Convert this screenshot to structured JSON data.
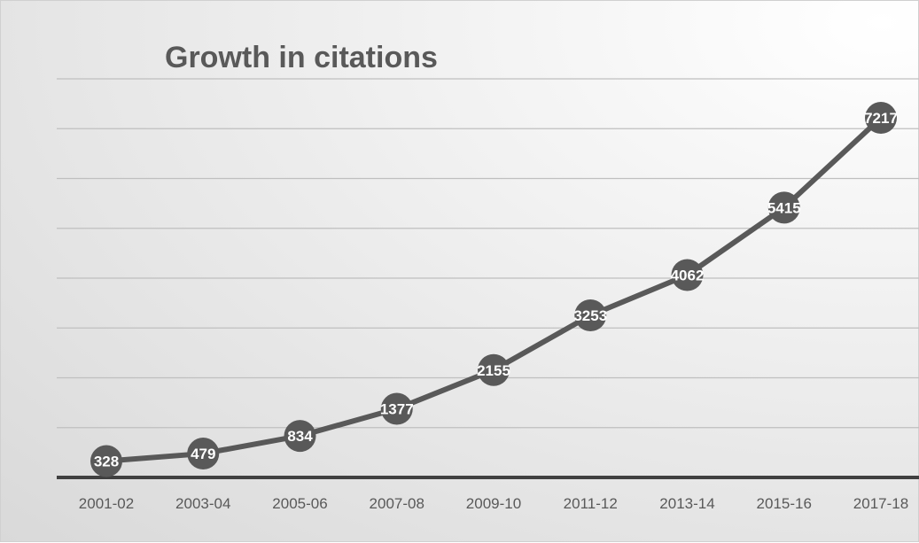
{
  "chart_data": {
    "type": "line",
    "title": "Growth in citations",
    "xlabel": "",
    "ylabel": "",
    "categories": [
      "2001-02",
      "2003-04",
      "2005-06",
      "2007-08",
      "2009-10",
      "2011-12",
      "2013-14",
      "2015-16",
      "2017-18"
    ],
    "series": [
      {
        "values": [
          328,
          479,
          834,
          1377,
          2155,
          3253,
          4062,
          5415,
          7217
        ]
      }
    ],
    "ylim": [
      0,
      8000
    ],
    "y_axis_visible": false,
    "grid": true,
    "legend": "none",
    "data_labels": true,
    "colors": {
      "line": "#595959",
      "marker": "#595959",
      "gridline": "#bfbfbf",
      "axis": "#404040",
      "label_text": "#ffffff",
      "title_text": "#595959"
    }
  }
}
